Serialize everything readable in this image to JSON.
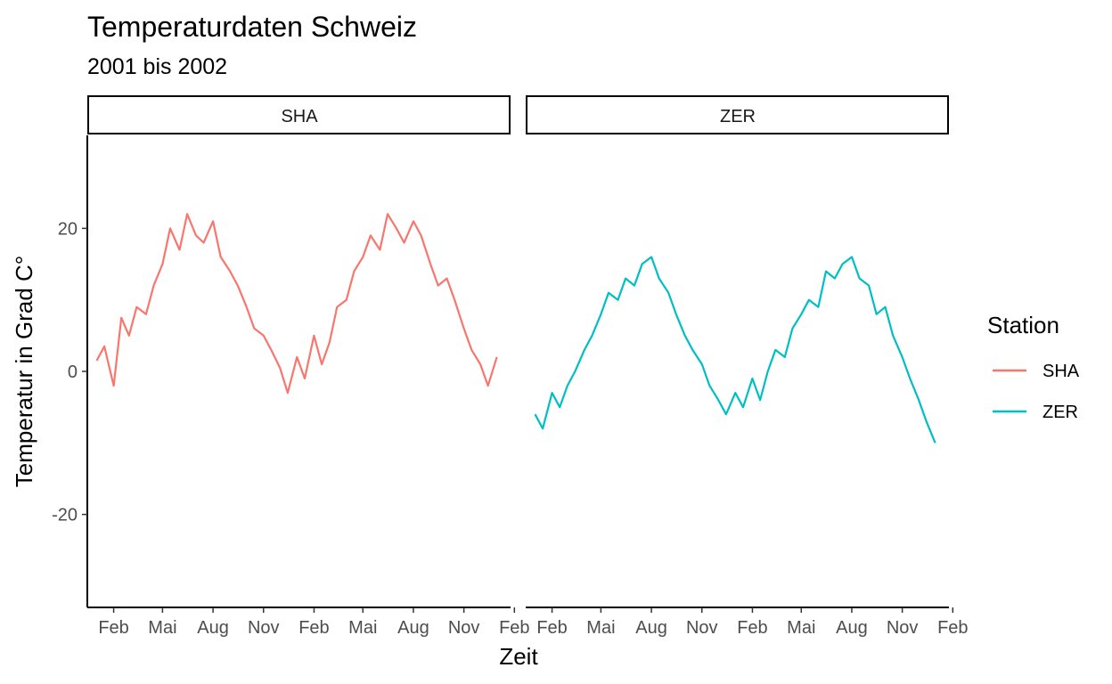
{
  "chart_data": {
    "type": "line",
    "title": "Temperaturdaten Schweiz",
    "subtitle": "2001 bis 2002",
    "xlabel": "Zeit",
    "ylabel": "Temperatur in Grad C°",
    "x_range": [
      "2000-12-15",
      "2003-01-25"
    ],
    "ylim": [
      -33,
      33
    ],
    "y_ticks": [
      -20,
      0,
      20
    ],
    "x_ticks": [
      {
        "date": "2001-02-01",
        "label": "Feb"
      },
      {
        "date": "2001-05-01",
        "label": "Mai"
      },
      {
        "date": "2001-08-01",
        "label": "Aug"
      },
      {
        "date": "2001-11-01",
        "label": "Nov"
      },
      {
        "date": "2002-02-01",
        "label": "Feb"
      },
      {
        "date": "2002-05-01",
        "label": "Mai"
      },
      {
        "date": "2002-08-01",
        "label": "Aug"
      },
      {
        "date": "2002-11-01",
        "label": "Nov"
      },
      {
        "date": "2003-02-01",
        "label": "Feb"
      }
    ],
    "legend": {
      "title": "Station",
      "position": "right"
    },
    "grid": false,
    "series": [
      {
        "name": "SHA",
        "color": "#F8766D",
        "x": [
          "2001-01-01",
          "2001-01-15",
          "2001-02-01",
          "2001-02-15",
          "2001-03-01",
          "2001-03-15",
          "2001-04-01",
          "2001-04-15",
          "2001-05-01",
          "2001-05-15",
          "2001-06-01",
          "2001-06-15",
          "2001-07-01",
          "2001-07-15",
          "2001-08-01",
          "2001-08-15",
          "2001-09-01",
          "2001-09-15",
          "2001-10-01",
          "2001-10-15",
          "2001-11-01",
          "2001-11-15",
          "2001-12-01",
          "2001-12-15",
          "2002-01-01",
          "2002-01-15",
          "2002-02-01",
          "2002-02-15",
          "2002-03-01",
          "2002-03-15",
          "2002-04-01",
          "2002-04-15",
          "2002-05-01",
          "2002-05-15",
          "2002-06-01",
          "2002-06-15",
          "2002-07-01",
          "2002-07-15",
          "2002-08-01",
          "2002-08-15",
          "2002-09-01",
          "2002-09-15",
          "2002-10-01",
          "2002-10-15",
          "2002-11-01",
          "2002-11-15",
          "2002-12-01",
          "2002-12-15",
          "2002-12-31"
        ],
        "values": [
          1.5,
          3.5,
          -2.0,
          7.5,
          5.0,
          9.0,
          8.0,
          12.0,
          15.0,
          20.0,
          17.0,
          22.0,
          19.0,
          18.0,
          21.0,
          16.0,
          14.0,
          12.0,
          9.0,
          6.0,
          5.0,
          3.0,
          0.5,
          -3.0,
          2.0,
          -1.0,
          5.0,
          1.0,
          4.0,
          9.0,
          10.0,
          14.0,
          16.0,
          19.0,
          17.0,
          22.0,
          20.0,
          18.0,
          21.0,
          19.0,
          15.0,
          12.0,
          13.0,
          10.0,
          6.0,
          3.0,
          1.0,
          -2.0,
          2.0
        ]
      },
      {
        "name": "ZER",
        "color": "#00BFC4",
        "x": [
          "2001-01-01",
          "2001-01-15",
          "2001-02-01",
          "2001-02-15",
          "2001-03-01",
          "2001-03-15",
          "2001-04-01",
          "2001-04-15",
          "2001-05-01",
          "2001-05-15",
          "2001-06-01",
          "2001-06-15",
          "2001-07-01",
          "2001-07-15",
          "2001-08-01",
          "2001-08-15",
          "2001-09-01",
          "2001-09-15",
          "2001-10-01",
          "2001-10-15",
          "2001-11-01",
          "2001-11-15",
          "2001-12-01",
          "2001-12-15",
          "2002-01-01",
          "2002-01-15",
          "2002-02-01",
          "2002-02-15",
          "2002-03-01",
          "2002-03-15",
          "2002-04-01",
          "2002-04-15",
          "2002-05-01",
          "2002-05-15",
          "2002-06-01",
          "2002-06-15",
          "2002-07-01",
          "2002-07-15",
          "2002-08-01",
          "2002-08-15",
          "2002-09-01",
          "2002-09-15",
          "2002-10-01",
          "2002-10-15",
          "2002-11-01",
          "2002-11-15",
          "2002-12-01",
          "2002-12-15",
          "2002-12-31"
        ],
        "values": [
          -6.0,
          -8.0,
          -3.0,
          -5.0,
          -2.0,
          0.0,
          3.0,
          5.0,
          8.0,
          11.0,
          10.0,
          13.0,
          12.0,
          15.0,
          16.0,
          13.0,
          11.0,
          8.0,
          5.0,
          3.0,
          1.0,
          -2.0,
          -4.0,
          -6.0,
          -3.0,
          -5.0,
          -1.0,
          -4.0,
          0.0,
          3.0,
          2.0,
          6.0,
          8.0,
          10.0,
          9.0,
          14.0,
          13.0,
          15.0,
          16.0,
          13.0,
          12.0,
          8.0,
          9.0,
          5.0,
          2.0,
          -1.0,
          -4.0,
          -7.0,
          -10.0
        ]
      }
    ]
  }
}
